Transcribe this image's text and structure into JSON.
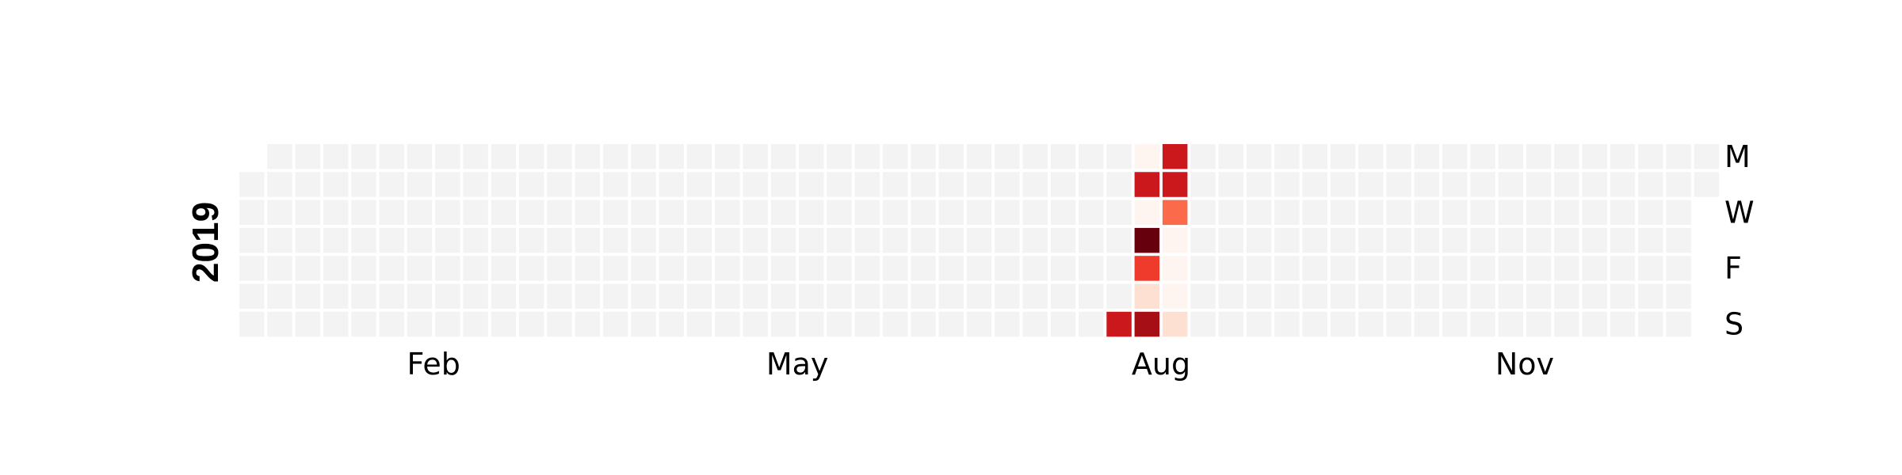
{
  "chart_data": {
    "type": "heatmap",
    "title": "",
    "year_label": "2019",
    "month_labels": [
      {
        "label": "Feb",
        "week": 6.5
      },
      {
        "label": "May",
        "week": 19.5
      },
      {
        "label": "Aug",
        "week": 32.5
      },
      {
        "label": "Nov",
        "week": 45.5
      }
    ],
    "day_labels": [
      {
        "label": "M",
        "day": 0
      },
      {
        "label": "W",
        "day": 2
      },
      {
        "label": "F",
        "day": 4
      },
      {
        "label": "S",
        "day": 6
      }
    ],
    "start_weekday": 1,
    "days_in_year": 365,
    "empty_color": "#f3f3f3",
    "colorscale": [
      "#fff5f0",
      "#fee0d2",
      "#fcbba1",
      "#fc9272",
      "#fb6a4a",
      "#ef3b2c",
      "#cb181d",
      "#a50f15",
      "#67000d"
    ],
    "values": [
      {
        "date": "2019-08-11",
        "value": 0.8
      },
      {
        "date": "2019-08-12",
        "value": 0.02
      },
      {
        "date": "2019-08-13",
        "value": 0.72
      },
      {
        "date": "2019-08-14",
        "value": 0.03
      },
      {
        "date": "2019-08-15",
        "value": 1.0
      },
      {
        "date": "2019-08-16",
        "value": 0.62
      },
      {
        "date": "2019-08-17",
        "value": 0.15
      },
      {
        "date": "2019-08-18",
        "value": 0.9
      },
      {
        "date": "2019-08-19",
        "value": 0.8
      },
      {
        "date": "2019-08-20",
        "value": 0.8
      },
      {
        "date": "2019-08-21",
        "value": 0.45
      },
      {
        "date": "2019-08-22",
        "value": 0.05
      },
      {
        "date": "2019-08-23",
        "value": 0.04
      },
      {
        "date": "2019-08-24",
        "value": 0.06
      },
      {
        "date": "2019-08-25",
        "value": 0.12
      }
    ]
  }
}
